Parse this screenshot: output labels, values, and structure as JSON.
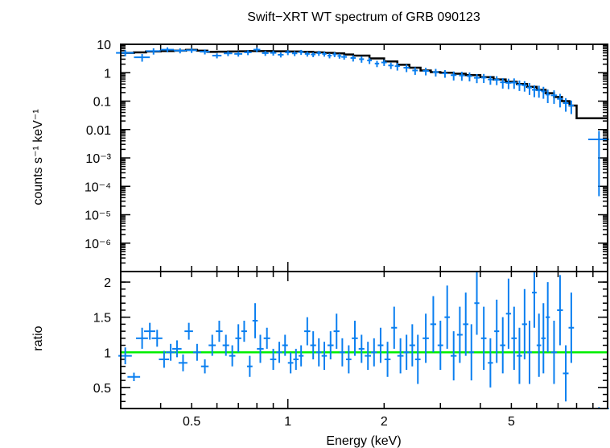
{
  "chart_data": [
    {
      "type": "scatter",
      "title": "Swift−XRT WT spectrum of GRB 090123",
      "xlabel": "",
      "ylabel": "counts s⁻¹ keV⁻¹",
      "x_scale": "log",
      "y_scale": "log",
      "xlim": [
        0.3,
        10.0
      ],
      "ylim": [
        1e-07,
        10
      ],
      "y_tick_labels": [
        "10",
        "1",
        "0.1",
        "0.01",
        "10⁻³",
        "10⁻⁴",
        "10⁻⁵",
        "10⁻⁶"
      ],
      "y_tick_values": [
        10,
        1,
        0.1,
        0.01,
        0.001,
        0.0001,
        1e-05,
        1e-06
      ],
      "colors": {
        "data": "#0a7ff0",
        "model": "#000000"
      },
      "series": [
        {
          "kind": "data",
          "x": [
            0.31,
            0.35,
            0.38,
            0.42,
            0.46,
            0.5,
            0.55,
            0.6,
            0.65,
            0.7,
            0.75,
            0.8,
            0.85,
            0.9,
            0.95,
            1.0,
            1.05,
            1.1,
            1.15,
            1.2,
            1.25,
            1.3,
            1.35,
            1.4,
            1.45,
            1.5,
            1.6,
            1.7,
            1.8,
            1.9,
            2.0,
            2.1,
            2.2,
            2.35,
            2.5,
            2.7,
            2.9,
            3.1,
            3.3,
            3.5,
            3.7,
            3.9,
            4.1,
            4.3,
            4.5,
            4.7,
            4.9,
            5.1,
            5.3,
            5.5,
            5.7,
            5.9,
            6.1,
            6.3,
            6.5,
            6.8,
            7.1,
            7.4,
            7.7,
            9.4
          ],
          "y": [
            5.0,
            3.5,
            5.8,
            6.5,
            6.0,
            6.2,
            5.5,
            4.0,
            4.8,
            4.6,
            5.2,
            6.5,
            4.9,
            5.0,
            4.3,
            5.2,
            4.8,
            5.3,
            4.6,
            4.4,
            4.9,
            4.6,
            4.0,
            4.4,
            3.9,
            3.6,
            3.3,
            3.0,
            2.7,
            2.1,
            2.3,
            1.8,
            1.7,
            1.5,
            1.2,
            1.15,
            1.05,
            0.95,
            0.82,
            0.8,
            0.76,
            0.66,
            0.67,
            0.58,
            0.56,
            0.46,
            0.44,
            0.45,
            0.38,
            0.36,
            0.3,
            0.25,
            0.24,
            0.22,
            0.17,
            0.16,
            0.12,
            0.085,
            0.07,
            0.0045
          ],
          "xerr": [
            0.02,
            0.02,
            0.02,
            0.02,
            0.02,
            0.02,
            0.02,
            0.02,
            0.02,
            0.02,
            0.02,
            0.02,
            0.02,
            0.02,
            0.02,
            0.02,
            0.02,
            0.02,
            0.02,
            0.02,
            0.02,
            0.02,
            0.02,
            0.02,
            0.02,
            0.03,
            0.03,
            0.03,
            0.03,
            0.03,
            0.04,
            0.04,
            0.04,
            0.05,
            0.05,
            0.06,
            0.06,
            0.06,
            0.07,
            0.07,
            0.07,
            0.08,
            0.08,
            0.08,
            0.09,
            0.09,
            0.1,
            0.1,
            0.1,
            0.1,
            0.1,
            0.1,
            0.1,
            0.1,
            0.1,
            0.15,
            0.15,
            0.15,
            0.15,
            0.7
          ],
          "yerr_rel": [
            0.25,
            0.3,
            0.25,
            0.2,
            0.2,
            0.2,
            0.2,
            0.2,
            0.2,
            0.2,
            0.2,
            0.2,
            0.2,
            0.2,
            0.2,
            0.2,
            0.2,
            0.2,
            0.2,
            0.2,
            0.2,
            0.2,
            0.2,
            0.2,
            0.2,
            0.2,
            0.25,
            0.25,
            0.25,
            0.25,
            0.25,
            0.25,
            0.3,
            0.3,
            0.3,
            0.3,
            0.3,
            0.3,
            0.35,
            0.35,
            0.35,
            0.35,
            0.35,
            0.35,
            0.35,
            0.4,
            0.4,
            0.4,
            0.4,
            0.4,
            0.45,
            0.45,
            0.45,
            0.45,
            0.5,
            0.5,
            0.5,
            0.5,
            0.5,
            0.99
          ]
        },
        {
          "kind": "model",
          "x": [
            0.3,
            0.33,
            0.36,
            0.4,
            0.44,
            0.48,
            0.52,
            0.56,
            0.6,
            0.65,
            0.7,
            0.75,
            0.8,
            0.9,
            1.0,
            1.1,
            1.2,
            1.3,
            1.4,
            1.5,
            1.6,
            1.8,
            2.0,
            2.2,
            2.4,
            2.6,
            2.8,
            3.0,
            3.3,
            3.6,
            4.0,
            4.4,
            4.8,
            5.2,
            5.6,
            6.0,
            6.4,
            6.8,
            7.2,
            7.6,
            8.0,
            8.0,
            10.0
          ],
          "y": [
            5.0,
            5.2,
            5.6,
            5.8,
            6.0,
            6.4,
            6.0,
            5.4,
            5.5,
            5.6,
            5.7,
            5.8,
            5.8,
            5.7,
            5.6,
            5.4,
            5.2,
            5.0,
            4.8,
            4.4,
            4.0,
            3.2,
            2.5,
            1.9,
            1.5,
            1.2,
            1.05,
            1.0,
            0.92,
            0.82,
            0.7,
            0.58,
            0.48,
            0.4,
            0.32,
            0.25,
            0.19,
            0.14,
            0.1,
            0.07,
            0.05,
            0.025,
            0.025
          ]
        }
      ]
    },
    {
      "type": "scatter",
      "title": "",
      "xlabel": "Energy (keV)",
      "ylabel": "ratio",
      "x_scale": "log",
      "xlim": [
        0.3,
        10.0
      ],
      "ylim": [
        0.2,
        2.15
      ],
      "x_tick_labels": [
        "0.5",
        "1",
        "2",
        "5"
      ],
      "x_tick_values": [
        0.5,
        1,
        2,
        5
      ],
      "y_tick_labels": [
        "0.5",
        "1",
        "1.5",
        "2"
      ],
      "y_tick_values": [
        0.5,
        1,
        1.5,
        2
      ],
      "reference_line": 1.0,
      "colors": {
        "data": "#0a7ff0",
        "reference": "#00ee00"
      },
      "series": [
        {
          "kind": "data",
          "x": [
            0.31,
            0.33,
            0.35,
            0.37,
            0.39,
            0.41,
            0.43,
            0.45,
            0.47,
            0.49,
            0.52,
            0.55,
            0.58,
            0.61,
            0.64,
            0.67,
            0.7,
            0.73,
            0.76,
            0.79,
            0.82,
            0.86,
            0.9,
            0.94,
            0.98,
            1.02,
            1.06,
            1.1,
            1.15,
            1.2,
            1.25,
            1.3,
            1.36,
            1.42,
            1.48,
            1.55,
            1.62,
            1.7,
            1.78,
            1.86,
            1.95,
            2.05,
            2.15,
            2.25,
            2.35,
            2.45,
            2.55,
            2.7,
            2.85,
            3.0,
            3.15,
            3.3,
            3.45,
            3.6,
            3.75,
            3.9,
            4.1,
            4.3,
            4.5,
            4.7,
            4.9,
            5.1,
            5.3,
            5.5,
            5.7,
            5.9,
            6.1,
            6.3,
            6.5,
            6.8,
            7.1,
            7.4,
            7.7,
            9.4
          ],
          "y": [
            0.95,
            0.65,
            1.2,
            1.3,
            1.2,
            0.9,
            1.0,
            1.05,
            0.85,
            1.3,
            1.0,
            0.8,
            1.1,
            1.3,
            1.1,
            0.95,
            1.2,
            1.3,
            0.8,
            1.45,
            1.05,
            1.2,
            0.9,
            1.0,
            1.1,
            0.85,
            0.9,
            0.95,
            1.3,
            1.1,
            1.0,
            0.95,
            1.1,
            1.3,
            1.0,
            0.9,
            1.2,
            1.05,
            0.95,
            1.0,
            1.1,
            0.9,
            1.35,
            0.95,
            1.0,
            1.1,
            0.9,
            1.2,
            1.4,
            1.1,
            1.5,
            0.95,
            1.25,
            1.4,
            1.0,
            1.7,
            1.2,
            0.85,
            1.3,
            1.1,
            1.55,
            1.2,
            0.95,
            1.4,
            1.0,
            1.85,
            1.1,
            1.2,
            1.5,
            1.0,
            1.6,
            0.7,
            1.35,
            0.2
          ],
          "xerr": [
            0.015,
            0.015,
            0.015,
            0.015,
            0.015,
            0.015,
            0.015,
            0.015,
            0.015,
            0.015,
            0.015,
            0.015,
            0.015,
            0.015,
            0.015,
            0.015,
            0.015,
            0.015,
            0.015,
            0.015,
            0.02,
            0.02,
            0.02,
            0.02,
            0.02,
            0.02,
            0.02,
            0.02,
            0.025,
            0.025,
            0.025,
            0.025,
            0.03,
            0.03,
            0.03,
            0.03,
            0.035,
            0.035,
            0.04,
            0.04,
            0.04,
            0.045,
            0.045,
            0.05,
            0.05,
            0.05,
            0.05,
            0.06,
            0.06,
            0.06,
            0.06,
            0.07,
            0.07,
            0.07,
            0.07,
            0.07,
            0.08,
            0.08,
            0.08,
            0.09,
            0.09,
            0.1,
            0.1,
            0.1,
            0.1,
            0.1,
            0.1,
            0.1,
            0.1,
            0.15,
            0.15,
            0.15,
            0.15,
            0.7
          ],
          "yerr": [
            0.12,
            0.06,
            0.15,
            0.12,
            0.12,
            0.12,
            0.12,
            0.12,
            0.12,
            0.12,
            0.12,
            0.1,
            0.15,
            0.15,
            0.15,
            0.15,
            0.2,
            0.15,
            0.15,
            0.25,
            0.2,
            0.15,
            0.15,
            0.15,
            0.15,
            0.15,
            0.15,
            0.15,
            0.2,
            0.2,
            0.2,
            0.2,
            0.2,
            0.25,
            0.2,
            0.2,
            0.25,
            0.2,
            0.2,
            0.2,
            0.25,
            0.25,
            0.3,
            0.25,
            0.25,
            0.3,
            0.35,
            0.35,
            0.4,
            0.35,
            0.45,
            0.35,
            0.4,
            0.45,
            0.4,
            0.45,
            0.45,
            0.35,
            0.45,
            0.4,
            0.5,
            0.45,
            0.4,
            0.5,
            0.45,
            0.5,
            0.45,
            0.5,
            0.5,
            0.45,
            0.5,
            0.4,
            0.5,
            0.02
          ]
        }
      ]
    }
  ]
}
